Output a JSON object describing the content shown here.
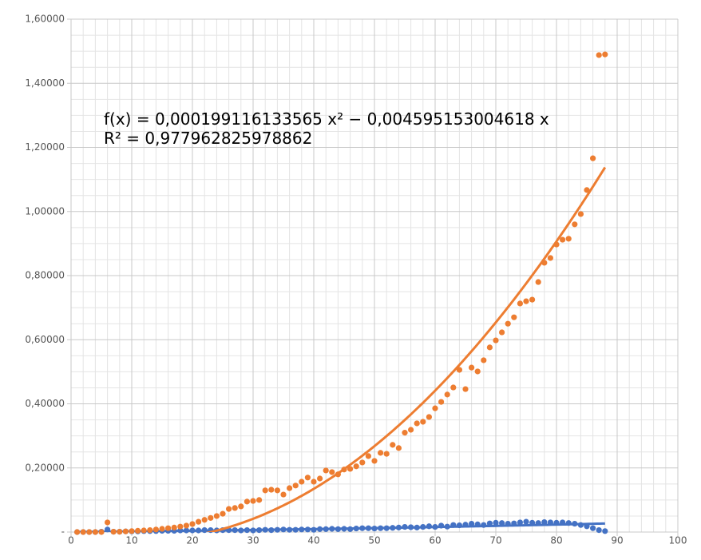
{
  "chart_data": {
    "type": "scatter",
    "annotations": [
      "f(x) = 0,000199116133565 x² − 0,004595153004618 x",
      "R² = 0,977962825978862"
    ],
    "x": [
      1,
      2,
      3,
      4,
      5,
      6,
      7,
      8,
      9,
      10,
      11,
      12,
      13,
      14,
      15,
      16,
      17,
      18,
      19,
      20,
      21,
      22,
      23,
      24,
      25,
      26,
      27,
      28,
      29,
      30,
      31,
      32,
      33,
      34,
      35,
      36,
      37,
      38,
      39,
      40,
      41,
      42,
      43,
      44,
      45,
      46,
      47,
      48,
      49,
      50,
      51,
      52,
      53,
      54,
      55,
      56,
      57,
      58,
      59,
      60,
      61,
      62,
      63,
      64,
      65,
      66,
      67,
      68,
      69,
      70,
      71,
      72,
      73,
      74,
      75,
      76,
      77,
      78,
      79,
      80,
      81,
      82,
      83,
      84,
      85,
      86,
      87,
      88
    ],
    "series": [
      {
        "color": "#4472c4",
        "values": [
          0,
          0,
          0,
          0,
          0.001,
          0.008,
          0.001,
          0.001,
          0.002,
          0.002,
          0.002,
          0.003,
          0.003,
          0.003,
          0.004,
          0.004,
          0.004,
          0.005,
          0.005,
          0.005,
          0.005,
          0.006,
          0.006,
          0.005,
          0.006,
          0.006,
          0.006,
          0.005,
          0.006,
          0.005,
          0.006,
          0.007,
          0.006,
          0.007,
          0.008,
          0.007,
          0.007,
          0.008,
          0.008,
          0.007,
          0.009,
          0.009,
          0.01,
          0.009,
          0.01,
          0.009,
          0.011,
          0.012,
          0.012,
          0.011,
          0.012,
          0.012,
          0.013,
          0.014,
          0.016,
          0.015,
          0.014,
          0.016,
          0.018,
          0.016,
          0.02,
          0.017,
          0.022,
          0.021,
          0.023,
          0.026,
          0.024,
          0.022,
          0.027,
          0.029,
          0.028,
          0.026,
          0.027,
          0.03,
          0.032,
          0.029,
          0.028,
          0.031,
          0.03,
          0.029,
          0.03,
          0.028,
          0.026,
          0.022,
          0.018,
          0.012,
          0.006,
          0.003
        ],
        "trendline": {
          "a": 1.5e-06,
          "b": 0.00017
        }
      },
      {
        "color": "#ed7d31",
        "values": [
          0,
          0,
          0,
          0,
          0,
          0.03,
          0.001,
          0.001,
          0.002,
          0.003,
          0.004,
          0.005,
          0.006,
          0.008,
          0.01,
          0.012,
          0.014,
          0.017,
          0.02,
          0.025,
          0.032,
          0.038,
          0.044,
          0.05,
          0.057,
          0.072,
          0.075,
          0.08,
          0.095,
          0.097,
          0.1,
          0.13,
          0.132,
          0.13,
          0.117,
          0.137,
          0.145,
          0.157,
          0.17,
          0.157,
          0.167,
          0.192,
          0.187,
          0.18,
          0.195,
          0.197,
          0.205,
          0.217,
          0.237,
          0.222,
          0.247,
          0.244,
          0.272,
          0.262,
          0.31,
          0.319,
          0.339,
          0.344,
          0.359,
          0.386,
          0.406,
          0.429,
          0.451,
          0.506,
          0.446,
          0.513,
          0.501,
          0.536,
          0.576,
          0.598,
          0.623,
          0.65,
          0.67,
          0.713,
          0.72,
          0.725,
          0.78,
          0.84,
          0.855,
          0.897,
          0.912,
          0.915,
          0.96,
          0.992,
          1.067,
          1.166,
          1.488,
          1.49
        ],
        "trendline": {
          "a": 0.000199116133565,
          "b": -0.004595153004618
        }
      }
    ],
    "xlim": [
      0,
      100
    ],
    "xticks": [
      0,
      10,
      20,
      30,
      40,
      50,
      60,
      70,
      80,
      90,
      100
    ],
    "ylim": [
      0,
      1.6
    ],
    "yticks": [
      {
        "value": 0,
        "label": "-"
      },
      {
        "value": 0.2,
        "label": "0,20000"
      },
      {
        "value": 0.4,
        "label": "0,40000"
      },
      {
        "value": 0.6,
        "label": "0,60000"
      },
      {
        "value": 0.8,
        "label": "0,80000"
      },
      {
        "value": 1.0,
        "label": "1,00000"
      },
      {
        "value": 1.2,
        "label": "1,20000"
      },
      {
        "value": 1.4,
        "label": "1,40000"
      },
      {
        "value": 1.6,
        "label": "1,60000"
      }
    ],
    "grid": true,
    "minor_grid": {
      "x": 5,
      "y": 4
    }
  }
}
